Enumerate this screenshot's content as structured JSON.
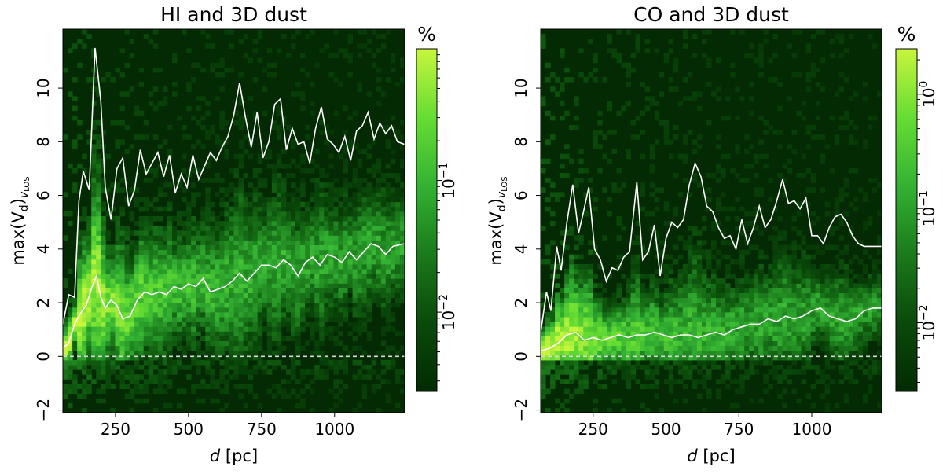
{
  "chart_data": [
    {
      "type": "heatmap",
      "title": "HI and 3D dust",
      "xlabel_var": "d",
      "xlabel_unit": "[pc]",
      "ylabel_pre": "max(V",
      "ylabel_sub": "d",
      "ylabel_post": ")",
      "ylabel_tail": "v",
      "ylabel_tail_sub": "LOS",
      "xlim": [
        70,
        1240
      ],
      "ylim": [
        -2.1,
        12.2
      ],
      "xticks": [
        250,
        500,
        750,
        1000
      ],
      "xtick_labels": [
        "250",
        "500",
        "750",
        "1000"
      ],
      "yticks": [
        -2,
        0,
        2,
        4,
        6,
        8,
        10
      ],
      "ytick_labels": [
        "−2",
        "0",
        "2",
        "4",
        "6",
        "8",
        "10"
      ],
      "zero_line": 0,
      "colorbar": {
        "label": "%",
        "scale": "log",
        "range": [
          0.0025,
          1.0
        ],
        "ticks": [
          0.01,
          0.1
        ],
        "tick_bases": [
          "10",
          "10"
        ],
        "tick_exps": [
          "−2",
          "−1"
        ],
        "colors": [
          "#032a03",
          "#0a4a0a",
          "#1b7a1b",
          "#33b233",
          "#66dd33",
          "#c8f53c"
        ]
      },
      "upper_curve": {
        "x": [
          70,
          90,
          110,
          125,
          140,
          160,
          180,
          200,
          215,
          235,
          255,
          275,
          295,
          315,
          335,
          355,
          375,
          395,
          415,
          435,
          455,
          475,
          495,
          515,
          535,
          555,
          575,
          595,
          615,
          635,
          655,
          675,
          695,
          715,
          735,
          755,
          775,
          795,
          815,
          835,
          855,
          875,
          895,
          915,
          935,
          955,
          975,
          995,
          1015,
          1035,
          1055,
          1075,
          1095,
          1115,
          1135,
          1155,
          1175,
          1195,
          1215,
          1240
        ],
        "y": [
          1.2,
          2.3,
          2.2,
          5.8,
          6.9,
          6.2,
          11.5,
          9.5,
          6.3,
          5.1,
          7.0,
          7.4,
          5.6,
          6.2,
          7.7,
          6.8,
          7.2,
          7.6,
          6.7,
          7.5,
          6.1,
          6.8,
          6.3,
          7.5,
          6.6,
          7.1,
          7.6,
          7.3,
          7.8,
          8.2,
          9.0,
          10.2,
          8.9,
          7.8,
          9.1,
          7.4,
          8.0,
          9.4,
          9.6,
          7.7,
          8.5,
          7.9,
          8.0,
          7.2,
          8.5,
          9.3,
          8.1,
          7.9,
          7.6,
          8.2,
          7.3,
          8.4,
          8.6,
          9.1,
          8.1,
          8.7,
          8.3,
          8.6,
          8.0,
          7.9
        ]
      },
      "median_curve": {
        "x": [
          70,
          90,
          110,
          130,
          150,
          170,
          185,
          200,
          215,
          235,
          255,
          275,
          300,
          325,
          350,
          375,
          400,
          425,
          450,
          475,
          500,
          525,
          550,
          575,
          600,
          625,
          650,
          675,
          700,
          725,
          750,
          775,
          800,
          825,
          850,
          875,
          900,
          925,
          950,
          975,
          1000,
          1025,
          1050,
          1075,
          1100,
          1125,
          1150,
          1175,
          1200,
          1240
        ],
        "y": [
          0.3,
          0.5,
          1.2,
          1.6,
          1.9,
          2.6,
          3.0,
          2.2,
          1.8,
          2.1,
          1.9,
          1.4,
          1.5,
          2.1,
          2.4,
          2.3,
          2.4,
          2.3,
          2.6,
          2.5,
          2.7,
          2.6,
          2.9,
          2.4,
          2.5,
          2.6,
          2.8,
          3.1,
          2.8,
          3.1,
          3.4,
          3.4,
          3.3,
          3.6,
          3.4,
          3.0,
          3.5,
          3.7,
          3.4,
          3.8,
          3.7,
          3.5,
          3.9,
          3.6,
          3.9,
          4.2,
          4.1,
          3.8,
          4.1,
          4.2
        ]
      }
    },
    {
      "type": "heatmap",
      "title": "CO and 3D dust",
      "xlabel_var": "d",
      "xlabel_unit": "[pc]",
      "ylabel_pre": "max(V",
      "ylabel_sub": "d",
      "ylabel_post": ")",
      "ylabel_tail": "v",
      "ylabel_tail_sub": "LOS",
      "xlim": [
        70,
        1240
      ],
      "ylim": [
        -2.1,
        12.2
      ],
      "xticks": [
        250,
        500,
        750,
        1000
      ],
      "xtick_labels": [
        "250",
        "500",
        "750",
        "1000"
      ],
      "yticks": [
        -2,
        0,
        2,
        4,
        6,
        8,
        10
      ],
      "ytick_labels": [
        "−2",
        "0",
        "2",
        "4",
        "6",
        "8",
        "10"
      ],
      "zero_line": 0,
      "colorbar": {
        "label": "%",
        "scale": "log",
        "range": [
          0.0025,
          2.5
        ],
        "ticks": [
          0.01,
          0.1,
          1.0
        ],
        "tick_bases": [
          "10",
          "10",
          "10"
        ],
        "tick_exps": [
          "−2",
          "−1",
          "0"
        ],
        "colors": [
          "#032a03",
          "#0a4a0a",
          "#1b7a1b",
          "#33b233",
          "#66dd33",
          "#c8f53c"
        ]
      },
      "upper_curve": {
        "x": [
          70,
          90,
          105,
          125,
          140,
          160,
          180,
          200,
          215,
          235,
          255,
          275,
          295,
          315,
          335,
          355,
          375,
          400,
          420,
          440,
          460,
          480,
          500,
          520,
          540,
          560,
          580,
          600,
          620,
          640,
          660,
          680,
          700,
          720,
          740,
          760,
          780,
          800,
          820,
          840,
          860,
          880,
          900,
          920,
          940,
          960,
          980,
          1000,
          1020,
          1040,
          1060,
          1080,
          1100,
          1120,
          1140,
          1160,
          1180,
          1200,
          1240
        ],
        "y": [
          0.9,
          2.4,
          1.7,
          4.1,
          3.2,
          5.0,
          6.4,
          4.6,
          5.3,
          6.3,
          4.0,
          3.6,
          2.8,
          3.3,
          3.2,
          3.7,
          3.9,
          6.5,
          3.6,
          3.9,
          4.9,
          3.0,
          4.4,
          5.0,
          4.8,
          5.1,
          6.4,
          7.2,
          6.7,
          5.6,
          5.4,
          4.8,
          4.4,
          4.5,
          4.0,
          5.1,
          4.2,
          4.8,
          5.6,
          4.8,
          5.1,
          5.8,
          6.6,
          5.7,
          5.8,
          5.5,
          5.9,
          4.5,
          4.5,
          4.2,
          4.8,
          5.2,
          5.3,
          5.0,
          4.5,
          4.2,
          4.1,
          4.1,
          4.1
        ]
      },
      "median_curve": {
        "x": [
          70,
          100,
          130,
          160,
          190,
          220,
          250,
          280,
          310,
          340,
          370,
          400,
          430,
          460,
          490,
          520,
          550,
          580,
          610,
          640,
          670,
          700,
          730,
          760,
          790,
          820,
          850,
          880,
          910,
          940,
          970,
          1000,
          1030,
          1060,
          1090,
          1120,
          1150,
          1180,
          1210,
          1240
        ],
        "y": [
          0.2,
          0.3,
          0.5,
          0.8,
          0.9,
          0.6,
          0.7,
          0.6,
          0.7,
          0.8,
          0.7,
          0.8,
          0.8,
          0.9,
          0.8,
          0.7,
          0.8,
          0.8,
          0.7,
          0.8,
          0.9,
          0.8,
          1.0,
          1.1,
          1.2,
          1.2,
          1.4,
          1.3,
          1.5,
          1.4,
          1.5,
          1.7,
          1.8,
          1.5,
          1.4,
          1.3,
          1.4,
          1.7,
          1.8,
          1.8
        ]
      }
    }
  ]
}
